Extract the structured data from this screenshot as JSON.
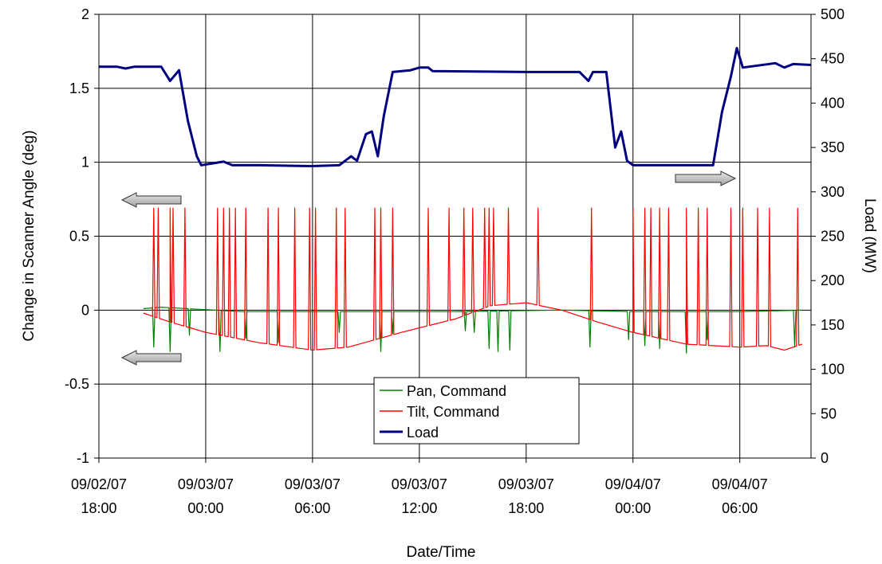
{
  "chart_data": {
    "type": "line",
    "xlabel": "Date/Time",
    "ylabel_left": "Change in Scanner Angle (deg)",
    "ylabel_right": "Load (MW)",
    "x_range": [
      "2007-09-02 18:00",
      "2007-09-04 10:00"
    ],
    "ylim_left": [
      -1,
      2
    ],
    "ylim_right": [
      0,
      500
    ],
    "grid": true,
    "legend_placement": "bottom-center",
    "y_left_ticks": [
      "2",
      "1.5",
      "1",
      "0.5",
      "0",
      "-0.5",
      "-1"
    ],
    "y_right_ticks": [
      "500",
      "450",
      "400",
      "350",
      "300",
      "250",
      "200",
      "150",
      "100",
      "50",
      "0"
    ],
    "x_ticks": [
      {
        "date": "09/02/07",
        "time": "18:00"
      },
      {
        "date": "09/03/07",
        "time": "00:00"
      },
      {
        "date": "09/03/07",
        "time": "06:00"
      },
      {
        "date": "09/03/07",
        "time": "12:00"
      },
      {
        "date": "09/03/07",
        "time": "18:00"
      },
      {
        "date": "09/04/07",
        "time": "00:00"
      },
      {
        "date": "09/04/07",
        "time": "06:00"
      }
    ],
    "series": [
      {
        "name": "Pan, Command",
        "axis": "left",
        "color": "#008000",
        "baseline": [
          [
            "2007-09-02 20:30",
            0.01
          ],
          [
            "2007-09-02 21:30",
            0.02
          ],
          [
            "2007-09-02 23:00",
            0.01
          ],
          [
            "2007-09-03 02:00",
            -0.01
          ],
          [
            "2007-09-03 08:00",
            -0.01
          ],
          [
            "2007-09-03 14:00",
            -0.01
          ],
          [
            "2007-09-03 20:00",
            0.0
          ],
          [
            "2007-09-04 00:00",
            -0.01
          ],
          [
            "2007-09-04 06:00",
            -0.01
          ],
          [
            "2007-09-04 09:30",
            0.0
          ]
        ],
        "spikes": [
          [
            "2007-09-02 21:05",
            -0.25
          ],
          [
            "2007-09-02 22:00",
            -0.28
          ],
          [
            "2007-09-02 23:05",
            -0.17
          ],
          [
            "2007-09-03 00:48",
            -0.28
          ],
          [
            "2007-09-03 02:15",
            -0.19
          ],
          [
            "2007-09-03 04:05",
            -0.22
          ],
          [
            "2007-09-03 07:30",
            -0.15
          ],
          [
            "2007-09-03 09:50",
            -0.28
          ],
          [
            "2007-09-03 10:30",
            -0.16
          ],
          [
            "2007-09-03 14:35",
            -0.14
          ],
          [
            "2007-09-03 15:05",
            -0.15
          ],
          [
            "2007-09-03 15:55",
            -0.26
          ],
          [
            "2007-09-03 16:25",
            -0.28
          ],
          [
            "2007-09-03 17:05",
            -0.27
          ],
          [
            "2007-09-03 21:35",
            -0.25
          ],
          [
            "2007-09-03 23:45",
            -0.2
          ],
          [
            "2007-09-04 00:40",
            -0.24
          ],
          [
            "2007-09-04 01:30",
            -0.26
          ],
          [
            "2007-09-04 03:00",
            -0.29
          ],
          [
            "2007-09-04 04:10",
            -0.2
          ],
          [
            "2007-09-04 09:05",
            -0.25
          ]
        ]
      },
      {
        "name": "Tilt, Command",
        "axis": "left",
        "color": "#ff0000",
        "baseline": [
          [
            "2007-09-02 20:30",
            -0.02
          ],
          [
            "2007-09-02 22:00",
            -0.08
          ],
          [
            "2007-09-03 00:00",
            -0.15
          ],
          [
            "2007-09-03 03:00",
            -0.22
          ],
          [
            "2007-09-03 06:00",
            -0.27
          ],
          [
            "2007-09-03 08:00",
            -0.25
          ],
          [
            "2007-09-03 11:00",
            -0.15
          ],
          [
            "2007-09-03 14:00",
            -0.06
          ],
          [
            "2007-09-03 16:00",
            0.03
          ],
          [
            "2007-09-03 18:00",
            0.05
          ],
          [
            "2007-09-03 20:00",
            0.0
          ],
          [
            "2007-09-03 22:00",
            -0.08
          ],
          [
            "2007-09-04 00:00",
            -0.15
          ],
          [
            "2007-09-04 03:00",
            -0.23
          ],
          [
            "2007-09-04 06:00",
            -0.25
          ],
          [
            "2007-09-04 07:30",
            -0.24
          ],
          [
            "2007-09-04 08:30",
            -0.27
          ],
          [
            "2007-09-04 09:30",
            -0.23
          ]
        ],
        "spike_peak": 0.69,
        "spike_times": [
          "2007-09-02 21:05",
          "2007-09-02 21:20",
          "2007-09-02 22:00",
          "2007-09-02 22:10",
          "2007-09-02 22:50",
          "2007-09-03 00:40",
          "2007-09-03 01:00",
          "2007-09-03 01:20",
          "2007-09-03 01:40",
          "2007-09-03 02:15",
          "2007-09-03 03:30",
          "2007-09-03 04:05",
          "2007-09-03 05:00",
          "2007-09-03 05:50",
          "2007-09-03 06:10",
          "2007-09-03 07:20",
          "2007-09-03 07:50",
          "2007-09-03 09:30",
          "2007-09-03 09:50",
          "2007-09-03 10:30",
          "2007-09-03 12:30",
          "2007-09-03 13:40",
          "2007-09-03 14:30",
          "2007-09-03 15:00",
          "2007-09-03 15:40",
          "2007-09-03 15:55",
          "2007-09-03 16:10",
          "2007-09-03 17:00",
          "2007-09-03 18:40",
          "2007-09-03 21:40",
          "2007-09-04 00:00",
          "2007-09-04 00:40",
          "2007-09-04 01:00",
          "2007-09-04 01:30",
          "2007-09-04 02:00",
          "2007-09-04 03:00",
          "2007-09-04 03:40",
          "2007-09-04 04:10",
          "2007-09-04 05:30",
          "2007-09-04 06:10",
          "2007-09-04 07:00",
          "2007-09-04 07:40",
          "2007-09-04 09:15"
        ]
      },
      {
        "name": "Load",
        "axis": "right",
        "color": "#000080",
        "points": [
          [
            "2007-09-02 18:00",
            441
          ],
          [
            "2007-09-02 19:00",
            441
          ],
          [
            "2007-09-02 19:30",
            439
          ],
          [
            "2007-09-02 20:00",
            441
          ],
          [
            "2007-09-02 21:30",
            441
          ],
          [
            "2007-09-02 22:00",
            425
          ],
          [
            "2007-09-02 22:30",
            437
          ],
          [
            "2007-09-02 23:00",
            380
          ],
          [
            "2007-09-02 23:30",
            340
          ],
          [
            "2007-09-02 23:45",
            330
          ],
          [
            "2007-09-03 01:00",
            334
          ],
          [
            "2007-09-03 01:30",
            330
          ],
          [
            "2007-09-03 03:00",
            330
          ],
          [
            "2007-09-03 06:00",
            329
          ],
          [
            "2007-09-03 07:30",
            330
          ],
          [
            "2007-09-03 08:10",
            340
          ],
          [
            "2007-09-03 08:30",
            335
          ],
          [
            "2007-09-03 09:00",
            365
          ],
          [
            "2007-09-03 09:20",
            368
          ],
          [
            "2007-09-03 09:40",
            340
          ],
          [
            "2007-09-03 10:00",
            385
          ],
          [
            "2007-09-03 10:30",
            435
          ],
          [
            "2007-09-03 11:30",
            437
          ],
          [
            "2007-09-03 12:00",
            440
          ],
          [
            "2007-09-03 12:30",
            440
          ],
          [
            "2007-09-03 12:45",
            436
          ],
          [
            "2007-09-03 18:00",
            435
          ],
          [
            "2007-09-03 21:00",
            435
          ],
          [
            "2007-09-03 21:30",
            425
          ],
          [
            "2007-09-03 21:45",
            435
          ],
          [
            "2007-09-03 22:30",
            435
          ],
          [
            "2007-09-03 23:00",
            350
          ],
          [
            "2007-09-03 23:20",
            368
          ],
          [
            "2007-09-03 23:40",
            335
          ],
          [
            "2007-09-04 00:00",
            330
          ],
          [
            "2007-09-04 03:00",
            330
          ],
          [
            "2007-09-04 04:30",
            330
          ],
          [
            "2007-09-04 05:00",
            390
          ],
          [
            "2007-09-04 05:30",
            430
          ],
          [
            "2007-09-04 05:50",
            462
          ],
          [
            "2007-09-04 06:10",
            440
          ],
          [
            "2007-09-04 08:00",
            445
          ],
          [
            "2007-09-04 08:30",
            440
          ],
          [
            "2007-09-04 09:00",
            444
          ],
          [
            "2007-09-04 10:00",
            443
          ]
        ]
      }
    ]
  }
}
